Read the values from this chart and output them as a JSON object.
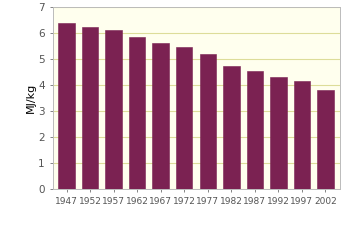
{
  "categories": [
    "1947",
    "1952",
    "1957",
    "1962",
    "1967",
    "1972",
    "1977",
    "1982",
    "1987",
    "1992",
    "1997",
    "2002"
  ],
  "values": [
    6.37,
    6.22,
    6.12,
    5.83,
    5.6,
    5.45,
    5.2,
    4.72,
    4.55,
    4.3,
    4.15,
    3.83
  ],
  "bar_color": "#7B2252",
  "bar_edge_color": "#7B2252",
  "ylabel": "MJ/kg",
  "ylim": [
    0,
    7
  ],
  "yticks": [
    0,
    1,
    2,
    3,
    4,
    5,
    6,
    7
  ],
  "axes_bg_color": "#FFFFEE",
  "grid_color": "#DDDD99",
  "fig_bg_color": "#FFFFFF",
  "label_fontsize": 6.5,
  "ylabel_fontsize": 8,
  "ytick_fontsize": 7.5
}
